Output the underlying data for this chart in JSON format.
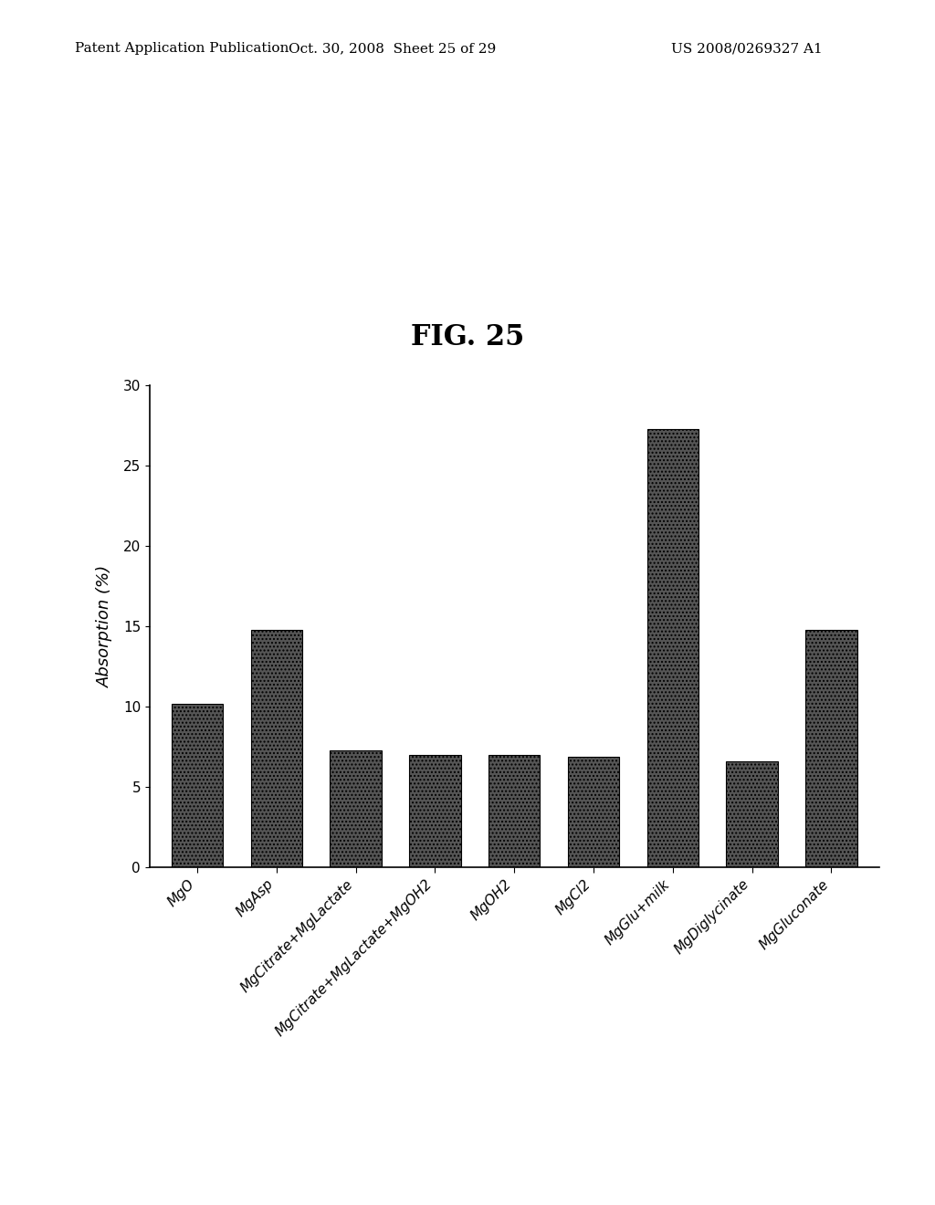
{
  "title": "FIG. 25",
  "categories": [
    "MgO",
    "MgAsp",
    "MgCitrate+MgLactate",
    "MgCitrate+MgLactate+MgOH2",
    "MgOH2",
    "MgCl2",
    "MgGlu+milk",
    "MgDiglycinate",
    "MgGluconate"
  ],
  "values": [
    10.2,
    14.8,
    7.3,
    7.0,
    7.0,
    6.9,
    27.3,
    6.6,
    14.8
  ],
  "ylabel": "Absorption (%)",
  "ylim": [
    0,
    30
  ],
  "yticks": [
    0,
    5,
    10,
    15,
    20,
    25,
    30
  ],
  "bar_color": "#555555",
  "background_color": "#ffffff",
  "title_fontsize": 22,
  "axis_fontsize": 13,
  "tick_fontsize": 11,
  "header_left": "Patent Application Publication",
  "header_mid": "Oct. 30, 2008  Sheet 25 of 29",
  "header_right": "US 2008/0269327 A1",
  "header_fontsize": 11
}
